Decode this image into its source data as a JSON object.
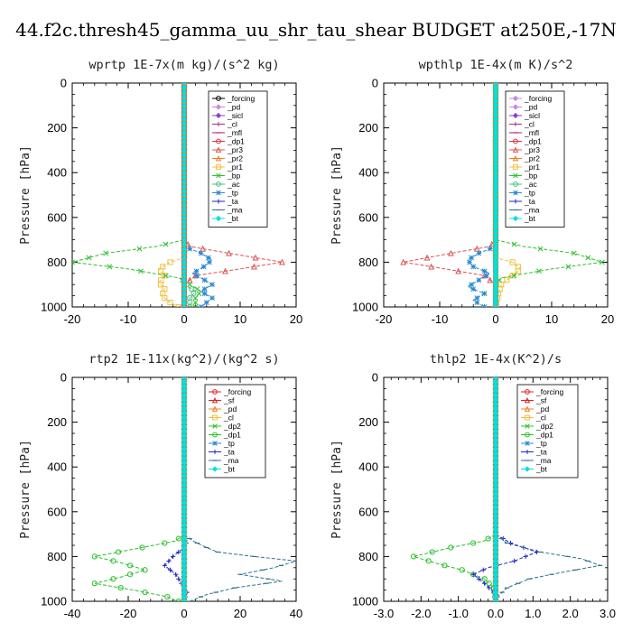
{
  "figure_title": "44.f2c.thresh45_gamma_uu_shr_tau_shear  BUDGET at250E,-17N",
  "colors": {
    "forcing": "#000000",
    "pd": "#c28ae0",
    "sicl": "#8a3fd1",
    "cl": "#a0337a",
    "mfl": "#b0196a",
    "dp1": "#e0303a",
    "dp2": "#28c028",
    "pr3": "#e05050",
    "pr2": "#f08020",
    "pr1": "#f0c040",
    "bp": "#30c030",
    "ac": "#40c080",
    "tp": "#2a8ad0",
    "ta": "#2020c8",
    "ma": "#307090",
    "bt": "#00e0e0",
    "sf": "#e02020"
  },
  "chart_data": [
    {
      "type": "line",
      "title": "wprtp  1E-7x(m kg)/(s^2 kg)",
      "ylabel": "Pressure [hPa]",
      "xlim": [
        -20,
        20
      ],
      "ylim": [
        1000,
        0
      ],
      "xticks": [
        "-20",
        "-10",
        "0",
        "10",
        "20"
      ],
      "yticks": [
        "0",
        "200",
        "400",
        "600",
        "800",
        "1000"
      ],
      "legend_position": "top-right",
      "series": [
        {
          "name": "_forcing",
          "color_key": "forcing",
          "marker": "circle",
          "p": [
            0,
            1000
          ],
          "x": [
            0,
            0
          ]
        },
        {
          "name": "_pd",
          "color_key": "pd",
          "marker": "diamond",
          "p": [
            0,
            1000
          ],
          "x": [
            0,
            0
          ]
        },
        {
          "name": "_sicl",
          "color_key": "sicl",
          "marker": "diamond",
          "p": [
            0,
            1000
          ],
          "x": [
            0,
            0
          ]
        },
        {
          "name": "_cl",
          "color_key": "cl",
          "marker": "plus",
          "p": [
            0,
            1000
          ],
          "x": [
            0,
            0
          ]
        },
        {
          "name": "_mfl",
          "color_key": "mfl",
          "marker": "dash",
          "p": [
            0,
            1000
          ],
          "x": [
            0,
            0
          ]
        },
        {
          "name": "_dp1",
          "color_key": "dp1",
          "marker": "circle",
          "p": [
            0,
            1000
          ],
          "x": [
            0,
            0
          ]
        },
        {
          "name": "_pr3",
          "color_key": "pr3",
          "marker": "triangle",
          "p": [
            0,
            700,
            730,
            760,
            800,
            830,
            860,
            900,
            1000
          ],
          "x": [
            0,
            0,
            1,
            8,
            17.5,
            10,
            2,
            0,
            0
          ]
        },
        {
          "name": "_pr2",
          "color_key": "pr2",
          "marker": "triangle",
          "p": [
            0,
            1000
          ],
          "x": [
            0,
            0
          ]
        },
        {
          "name": "_pr1",
          "color_key": "pr1",
          "marker": "square",
          "p": [
            0,
            780,
            800,
            830,
            860,
            890,
            920,
            950,
            980,
            1000
          ],
          "x": [
            0,
            0,
            -2.5,
            -4.5,
            -3.5,
            -4.5,
            -3.5,
            -4,
            -2.5,
            -1
          ]
        },
        {
          "name": "_bp",
          "color_key": "bp",
          "marker": "cross",
          "p": [
            0,
            700,
            730,
            760,
            800,
            830,
            870,
            900,
            930,
            960,
            1000
          ],
          "x": [
            0,
            0,
            -5,
            -14,
            -20,
            -10,
            -1,
            1,
            3,
            2,
            2
          ]
        },
        {
          "name": "_ac",
          "color_key": "ac",
          "marker": "circle",
          "p": [
            0,
            900,
            930,
            960,
            1000
          ],
          "x": [
            0,
            0,
            2,
            1,
            1
          ]
        },
        {
          "name": "_tp",
          "color_key": "tp",
          "marker": "star",
          "p": [
            0,
            730,
            760,
            790,
            820,
            850,
            870,
            900,
            930,
            960,
            1000
          ],
          "x": [
            0,
            0,
            3,
            5,
            3.5,
            1.5,
            3,
            5,
            3,
            5,
            3
          ]
        },
        {
          "name": "_ta",
          "color_key": "ta",
          "marker": "plus",
          "p": [
            0,
            1000
          ],
          "x": [
            0,
            0
          ]
        },
        {
          "name": "_ma",
          "color_key": "ma",
          "marker": "dash",
          "p": [
            0,
            1000
          ],
          "x": [
            0,
            0
          ]
        },
        {
          "name": "_bt",
          "color_key": "bt",
          "marker": "diamond",
          "p": [
            0,
            1000
          ],
          "x": [
            0,
            0
          ]
        }
      ]
    },
    {
      "type": "line",
      "title": "wpthlp  1E-4x(m K)/s^2",
      "ylabel": "Pressure [hPa]",
      "xlim": [
        -20,
        20
      ],
      "ylim": [
        1000,
        0
      ],
      "xticks": [
        "-20",
        "-10",
        "0",
        "10",
        "20"
      ],
      "yticks": [
        "0",
        "200",
        "400",
        "600",
        "800",
        "1000"
      ],
      "legend_position": "top-right",
      "series": [
        {
          "name": "_forcing",
          "color_key": "pd",
          "marker": "diamond",
          "p": [
            0,
            1000
          ],
          "x": [
            0,
            0
          ]
        },
        {
          "name": "_pd",
          "color_key": "pd",
          "marker": "diamond",
          "p": [
            0,
            1000
          ],
          "x": [
            0,
            0
          ]
        },
        {
          "name": "_sicl",
          "color_key": "sicl",
          "marker": "diamond",
          "p": [
            0,
            1000
          ],
          "x": [
            0,
            0
          ]
        },
        {
          "name": "_cl",
          "color_key": "cl",
          "marker": "plus",
          "p": [
            0,
            1000
          ],
          "x": [
            0,
            0
          ]
        },
        {
          "name": "_mfl",
          "color_key": "mfl",
          "marker": "dash",
          "p": [
            0,
            1000
          ],
          "x": [
            0,
            0
          ]
        },
        {
          "name": "_dp1",
          "color_key": "dp1",
          "marker": "circle",
          "p": [
            0,
            1000
          ],
          "x": [
            0,
            0
          ]
        },
        {
          "name": "_pr3",
          "color_key": "pr3",
          "marker": "triangle",
          "p": [
            0,
            700,
            730,
            760,
            800,
            830,
            860,
            900,
            1000
          ],
          "x": [
            0,
            0,
            -1,
            -8,
            -16.5,
            -9,
            -2,
            0,
            0
          ]
        },
        {
          "name": "_pr2",
          "color_key": "pr2",
          "marker": "triangle",
          "p": [
            0,
            1000
          ],
          "x": [
            0,
            0
          ]
        },
        {
          "name": "_pr1",
          "color_key": "pr1",
          "marker": "square",
          "p": [
            0,
            780,
            800,
            830,
            860,
            900,
            940,
            1000
          ],
          "x": [
            0,
            0,
            3,
            4.5,
            3,
            1,
            0.5,
            0
          ]
        },
        {
          "name": "_bp",
          "color_key": "bp",
          "marker": "cross",
          "p": [
            0,
            700,
            730,
            760,
            800,
            830,
            870,
            900,
            950,
            1000
          ],
          "x": [
            0,
            0,
            5,
            14,
            19,
            10,
            1,
            0,
            0,
            0
          ]
        },
        {
          "name": "_ac",
          "color_key": "ac",
          "marker": "circle",
          "p": [
            0,
            1000
          ],
          "x": [
            0,
            0
          ]
        },
        {
          "name": "_tp",
          "color_key": "tp",
          "marker": "star",
          "p": [
            0,
            730,
            760,
            790,
            820,
            850,
            880,
            910,
            940,
            970,
            1000
          ],
          "x": [
            0,
            0,
            -3,
            -5,
            -4,
            -1,
            -3,
            -5,
            -2,
            -4,
            -2
          ]
        },
        {
          "name": "_ta",
          "color_key": "ta",
          "marker": "plus",
          "p": [
            0,
            1000
          ],
          "x": [
            0,
            0
          ]
        },
        {
          "name": "_ma",
          "color_key": "ma",
          "marker": "dash",
          "p": [
            0,
            1000
          ],
          "x": [
            0,
            0
          ]
        },
        {
          "name": "_bt",
          "color_key": "bt",
          "marker": "diamond",
          "p": [
            0,
            1000
          ],
          "x": [
            0,
            0
          ]
        }
      ]
    },
    {
      "type": "line",
      "title": "rtp2  1E-11x(kg^2)/(kg^2 s)",
      "ylabel": "Pressure [hPa]",
      "xlim": [
        -40,
        40
      ],
      "ylim": [
        1000,
        0
      ],
      "xticks": [
        "-40",
        "-20",
        "0",
        "20",
        "40"
      ],
      "yticks": [
        "0",
        "200",
        "400",
        "600",
        "800",
        "1000"
      ],
      "legend_position": "top-right",
      "series": [
        {
          "name": "_forcing",
          "color_key": "sf",
          "marker": "circle",
          "p": [
            0,
            1000
          ],
          "x": [
            0,
            0
          ]
        },
        {
          "name": "_sf",
          "color_key": "sf",
          "marker": "triangle",
          "p": [
            0,
            1000
          ],
          "x": [
            0,
            0
          ]
        },
        {
          "name": "_pd",
          "color_key": "pr2",
          "marker": "triangle",
          "p": [
            0,
            1000
          ],
          "x": [
            0,
            0
          ]
        },
        {
          "name": "_cl",
          "color_key": "pr1",
          "marker": "square",
          "p": [
            0,
            1000
          ],
          "x": [
            0,
            0
          ]
        },
        {
          "name": "_dp2",
          "color_key": "bp",
          "marker": "cross",
          "p": [
            0,
            1000
          ],
          "x": [
            0,
            0
          ]
        },
        {
          "name": "_dp1",
          "color_key": "dp2",
          "marker": "circle",
          "p": [
            0,
            700,
            730,
            760,
            800,
            830,
            860,
            890,
            920,
            950,
            980,
            1000
          ],
          "x": [
            0,
            0,
            -3,
            -15,
            -32,
            -22,
            -14,
            -22,
            -32,
            -18,
            -6,
            -2
          ]
        },
        {
          "name": "_tp",
          "color_key": "tp",
          "marker": "star",
          "p": [
            0,
            1000
          ],
          "x": [
            0,
            0
          ]
        },
        {
          "name": "_ta",
          "color_key": "ta",
          "marker": "plus",
          "p": [
            0,
            700,
            730,
            760,
            800,
            840,
            880,
            920,
            960,
            1000
          ],
          "x": [
            0,
            0,
            1,
            0,
            -4,
            -7,
            -3,
            -1,
            1,
            0
          ]
        },
        {
          "name": "_ma",
          "color_key": "ma",
          "marker": "dash",
          "p": [
            0,
            700,
            730,
            760,
            780,
            800,
            820,
            850,
            880,
            910,
            940,
            970,
            1000
          ],
          "x": [
            0,
            0,
            3,
            8,
            12,
            25,
            40,
            32,
            20,
            35,
            18,
            8,
            2
          ]
        },
        {
          "name": "_bt",
          "color_key": "bt",
          "marker": "diamond",
          "p": [
            0,
            1000
          ],
          "x": [
            0,
            0
          ]
        }
      ]
    },
    {
      "type": "line",
      "title": "thlp2  1E-4x(K^2)/s",
      "ylabel": "Pressure [hPa]",
      "xlim": [
        -3.0,
        3.0
      ],
      "ylim": [
        1000,
        0
      ],
      "xticks": [
        "-3.0",
        "-2.0",
        "-1.0",
        "0.0",
        "1.0",
        "2.0",
        "3.0"
      ],
      "yticks": [
        "0",
        "200",
        "400",
        "600",
        "800",
        "1000"
      ],
      "legend_position": "top-right",
      "series": [
        {
          "name": "_forcing",
          "color_key": "sf",
          "marker": "circle",
          "p": [
            0,
            1000
          ],
          "x": [
            0,
            0
          ]
        },
        {
          "name": "_sf",
          "color_key": "sf",
          "marker": "triangle",
          "p": [
            0,
            1000
          ],
          "x": [
            0,
            0
          ]
        },
        {
          "name": "_pd",
          "color_key": "pr2",
          "marker": "triangle",
          "p": [
            0,
            1000
          ],
          "x": [
            0,
            0
          ]
        },
        {
          "name": "_cl",
          "color_key": "pr1",
          "marker": "square",
          "p": [
            0,
            1000
          ],
          "x": [
            0,
            0
          ]
        },
        {
          "name": "_dp2",
          "color_key": "bp",
          "marker": "cross",
          "p": [
            0,
            1000
          ],
          "x": [
            0,
            0
          ]
        },
        {
          "name": "_dp1",
          "color_key": "dp2",
          "marker": "circle",
          "p": [
            0,
            700,
            730,
            760,
            800,
            830,
            860,
            900,
            940,
            1000
          ],
          "x": [
            0,
            0,
            -0.3,
            -1.2,
            -2.2,
            -1.6,
            -0.9,
            -0.3,
            -0.05,
            0
          ]
        },
        {
          "name": "_tp",
          "color_key": "tp",
          "marker": "star",
          "p": [
            0,
            1000
          ],
          "x": [
            0,
            0
          ]
        },
        {
          "name": "_ta",
          "color_key": "ta",
          "marker": "plus",
          "p": [
            0,
            700,
            740,
            780,
            820,
            850,
            880,
            920,
            960,
            1000
          ],
          "x": [
            0,
            0,
            0.4,
            1.1,
            0.5,
            -0.2,
            -0.6,
            -0.3,
            -0.05,
            0
          ]
        },
        {
          "name": "_ma",
          "color_key": "ma",
          "marker": "dash",
          "p": [
            0,
            700,
            740,
            780,
            810,
            840,
            870,
            900,
            940,
            980,
            1000
          ],
          "x": [
            0,
            0,
            0.3,
            1.2,
            2.3,
            2.8,
            1.8,
            0.9,
            0.3,
            0.05,
            0
          ]
        },
        {
          "name": "_bt",
          "color_key": "bt",
          "marker": "diamond",
          "p": [
            0,
            1000
          ],
          "x": [
            0,
            0
          ]
        }
      ]
    }
  ]
}
